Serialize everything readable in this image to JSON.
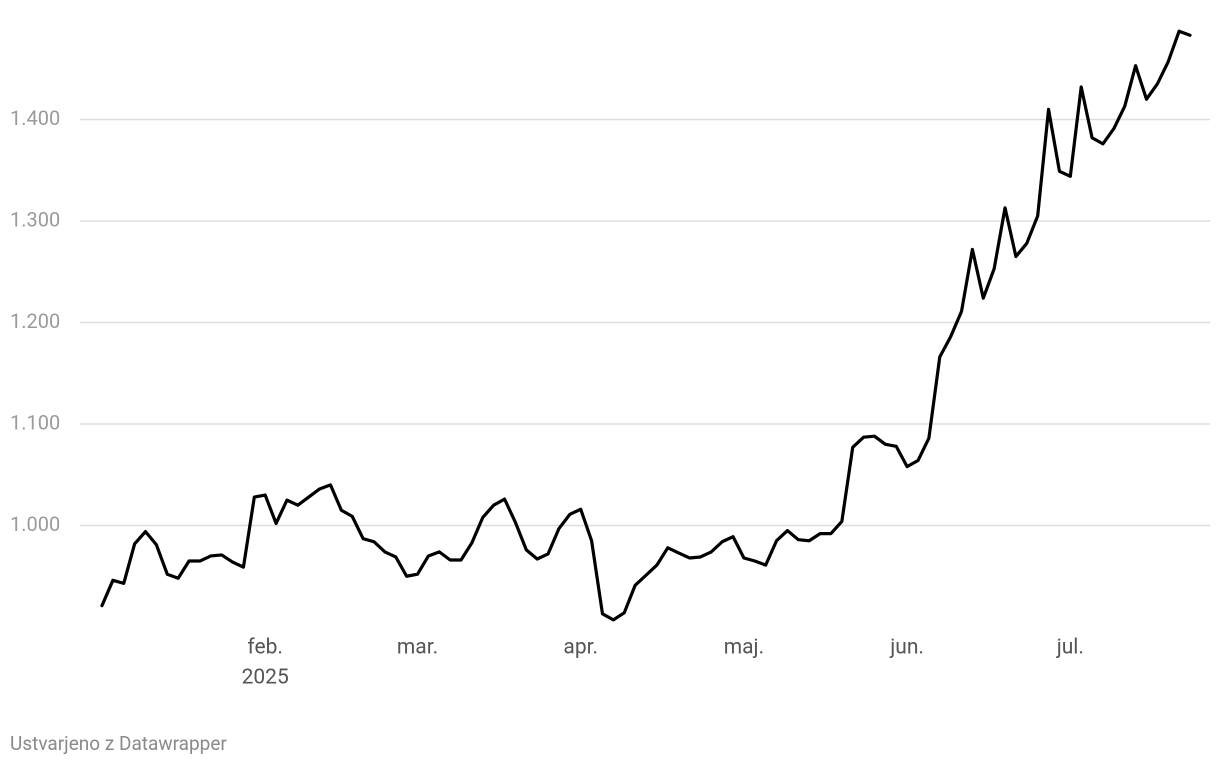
{
  "chart_data": {
    "type": "line",
    "categories": [
      null,
      null,
      null,
      null,
      null,
      null,
      null,
      null,
      null,
      null,
      null,
      null,
      null,
      null,
      null,
      "feb.",
      null,
      null,
      null,
      null,
      null,
      null,
      null,
      null,
      null,
      null,
      null,
      null,
      null,
      "mar.",
      null,
      null,
      null,
      null,
      null,
      null,
      null,
      null,
      null,
      null,
      null,
      null,
      null,
      null,
      "apr.",
      null,
      null,
      null,
      null,
      null,
      null,
      null,
      null,
      null,
      null,
      null,
      null,
      null,
      null,
      "maj.",
      null,
      null,
      null,
      null,
      null,
      null,
      null,
      null,
      null,
      null,
      null,
      null,
      null,
      null,
      "jun.",
      null,
      null,
      null,
      null,
      null,
      null,
      null,
      null,
      null,
      null,
      null,
      null,
      null,
      null,
      "jul.",
      null,
      null,
      null,
      null,
      null,
      null,
      null,
      null,
      null,
      null,
      null
    ],
    "year_label": "2025",
    "values": [
      921,
      946,
      943,
      982,
      994,
      981,
      952,
      948,
      965,
      965,
      970,
      971,
      964,
      959,
      1028,
      1030,
      1002,
      1025,
      1020,
      1028,
      1036,
      1040,
      1015,
      1009,
      987,
      984,
      974,
      969,
      950,
      952,
      970,
      974,
      966,
      966,
      983,
      1008,
      1020,
      1026,
      1003,
      976,
      967,
      972,
      997,
      1011,
      1016,
      985,
      913,
      907,
      914,
      941,
      951,
      961,
      978,
      973,
      968,
      969,
      974,
      984,
      989,
      968,
      965,
      961,
      985,
      995,
      986,
      985,
      992,
      992,
      1004,
      1077,
      1087,
      1088,
      1080,
      1078,
      1058,
      1064,
      1086,
      1166,
      1186,
      1211,
      1272,
      1224,
      1253,
      1313,
      1265,
      1278,
      1305,
      1410,
      1349,
      1344,
      1432,
      1382,
      1376,
      1391,
      1413,
      1453,
      1420,
      1435,
      1457,
      1487,
      1483
    ],
    "color": "#000000",
    "ylim": [
      900,
      1500
    ],
    "yticks": [
      {
        "value": 1000,
        "label": "1.000"
      },
      {
        "value": 1100,
        "label": "1.100"
      },
      {
        "value": 1200,
        "label": "1.200"
      },
      {
        "value": 1300,
        "label": "1.300"
      },
      {
        "value": 1400,
        "label": "1.400"
      }
    ],
    "grid": true,
    "source": "Ustvarjeno z Datawrapper"
  }
}
